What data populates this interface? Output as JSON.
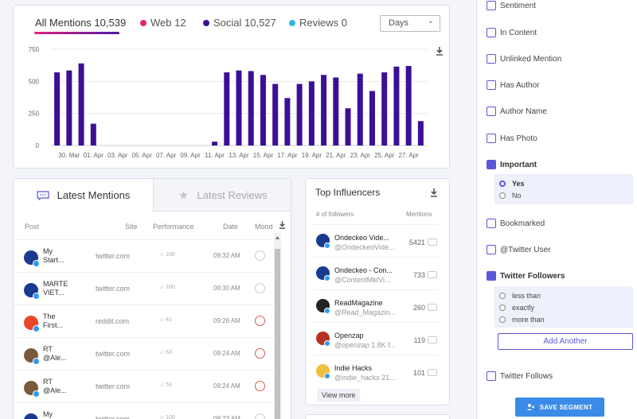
{
  "chart_tabs": [
    {
      "label": "All Mentions 10,539",
      "color": ""
    },
    {
      "label": "Web 12",
      "color": "#e2237a"
    },
    {
      "label": "Social 10,527",
      "color": "#3b0f96"
    },
    {
      "label": "Reviews 0",
      "color": "#36b3e0"
    }
  ],
  "days_select": {
    "value": "Days"
  },
  "chart_data": {
    "type": "bar",
    "color": "#3b0f96",
    "x_tick_labels": [
      "30. Mar",
      "01. Apr",
      "03. Apr",
      "05. Apr",
      "07. Apr",
      "09. Apr",
      "11. Apr",
      "13. Apr",
      "15. Apr",
      "17. Apr",
      "19. Apr",
      "21. Apr",
      "23. Apr",
      "25. Apr",
      "27. Apr"
    ],
    "categories": [
      "29. Mar",
      "30. Mar",
      "31. Mar",
      "01. Apr",
      "02. Apr",
      "03. Apr",
      "04. Apr",
      "05. Apr",
      "06. Apr",
      "07. Apr",
      "08. Apr",
      "09. Apr",
      "10. Apr",
      "11. Apr",
      "12. Apr",
      "13. Apr",
      "14. Apr",
      "15. Apr",
      "16. Apr",
      "17. Apr",
      "18. Apr",
      "19. Apr",
      "20. Apr",
      "21. Apr",
      "22. Apr",
      "23. Apr",
      "24. Apr",
      "25. Apr",
      "26. Apr",
      "27. Apr",
      "28. Apr"
    ],
    "values": [
      570,
      585,
      640,
      170,
      0,
      0,
      0,
      0,
      0,
      0,
      0,
      0,
      0,
      30,
      570,
      585,
      580,
      550,
      480,
      370,
      480,
      500,
      550,
      530,
      290,
      560,
      425,
      570,
      615,
      620,
      190
    ],
    "yticks": [
      0,
      250,
      500,
      750
    ],
    "ylim": [
      0,
      750
    ],
    "grid": true
  },
  "mentions": {
    "tabs": [
      "Latest Mentions",
      "Latest Reviews"
    ],
    "headers": {
      "post": "Post",
      "site": "Site",
      "performance": "Performance",
      "date": "Date",
      "mood": "Mood"
    },
    "rows": [
      {
        "post1": "My",
        "post2": "Start...",
        "site": "twitter.com",
        "perf": "100",
        "date": "09:32 AM",
        "avatar_color": "#1a3a8f",
        "mood": "neutral",
        "platform": "twitter"
      },
      {
        "post1": "MARTE",
        "post2": "VIET...",
        "site": "twitter.com",
        "perf": "100",
        "date": "09:30 AM",
        "avatar_color": "#1a3a8f",
        "mood": "neutral",
        "platform": "twitter"
      },
      {
        "post1": "The",
        "post2": "First...",
        "site": "reddit.com",
        "perf": "41",
        "date": "09:26 AM",
        "avatar_color": "#e8472a",
        "mood": "negative",
        "platform": "reddit"
      },
      {
        "post1": "RT",
        "post2": "@Ale...",
        "site": "twitter.com",
        "perf": "53",
        "date": "09:24 AM",
        "avatar_color": "#7a5a3a",
        "mood": "negative",
        "platform": "twitter"
      },
      {
        "post1": "RT",
        "post2": "@Ale...",
        "site": "twitter.com",
        "perf": "53",
        "date": "09:24 AM",
        "avatar_color": "#7a5a3a",
        "mood": "negative",
        "platform": "twitter"
      },
      {
        "post1": "My",
        "post2": "",
        "site": "twitter.com",
        "perf": "100",
        "date": "09:23 AM",
        "avatar_color": "#1a3a8f",
        "mood": "neutral",
        "platform": "twitter"
      }
    ]
  },
  "influencers": {
    "title": "Top Influencers",
    "col_followers": "# of followers",
    "col_mentions": "Mentions",
    "rows": [
      {
        "name": "Ondeckeo Vide...",
        "handle": "@OndeckeoVide...",
        "count": "5421",
        "avatar_color": "#1a3a8f"
      },
      {
        "name": "Ondeckeo - Con...",
        "handle": "@ContentMktVi...",
        "count": "733",
        "avatar_color": "#1a3a8f"
      },
      {
        "name": "ReadMagazine",
        "handle": "@Read_Magazin...",
        "count": "260",
        "avatar_color": "#222222"
      },
      {
        "name": "Openzap",
        "handle": "@openzap 1.8K f...",
        "count": "119",
        "avatar_color": "#b83222"
      },
      {
        "name": "Indie Hacks",
        "handle": "@indie_hacks 21...",
        "count": "101",
        "avatar_color": "#f0c040"
      }
    ],
    "view_more": "View more"
  },
  "filters": {
    "items": [
      {
        "label": "Sentiment",
        "checked": false
      },
      {
        "label": "In Content",
        "checked": false
      },
      {
        "label": "Unlinked Mention",
        "checked": false
      },
      {
        "label": "Has Author",
        "checked": false
      },
      {
        "label": "Author Name",
        "checked": false
      },
      {
        "label": "Has Photo",
        "checked": false
      },
      {
        "label": "Important",
        "checked": true
      },
      {
        "label": "Bookmarked",
        "checked": false
      },
      {
        "label": "@Twitter User",
        "checked": false
      },
      {
        "label": "Twitter Followers",
        "checked": true
      },
      {
        "label": "Twitter Follows",
        "checked": false
      }
    ],
    "important_options": [
      {
        "label": "Yes",
        "selected": true
      },
      {
        "label": "No",
        "selected": false
      }
    ],
    "followers_options": [
      {
        "label": "less than",
        "selected": false
      },
      {
        "label": "exactly",
        "selected": false
      },
      {
        "label": "more than",
        "selected": false
      }
    ],
    "add_another": "Add Another",
    "save_segment": "SAVE SEGMENT"
  }
}
